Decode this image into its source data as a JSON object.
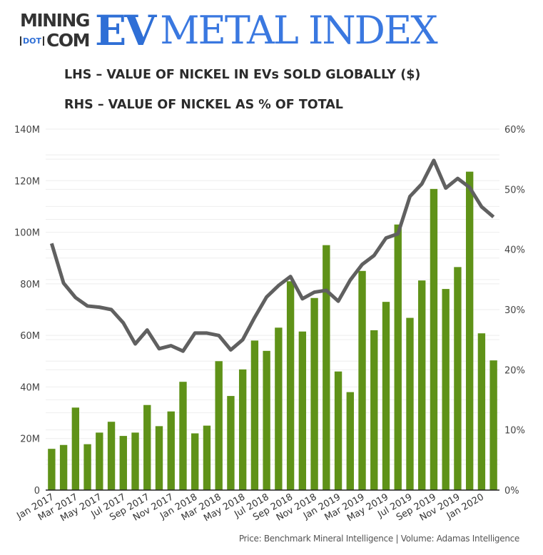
{
  "logo": {
    "mining": "MINING",
    "dot": "DOT",
    "com": "COM",
    "ev": "EV",
    "metal_index": "METAL INDEX"
  },
  "subtitle_lhs": "LHS – VALUE OF NICKEL IN EVs SOLD GLOBALLY ($)",
  "subtitle_rhs": "RHS – VALUE OF NICKEL AS % OF TOTAL",
  "footer": "Price: Benchmark Mineral Intelligence | Volume: Adamas Intelligence",
  "colors": {
    "bars": "#5f9218",
    "line": "#606060",
    "logo_blue": "#2f6fd6",
    "grid": "#eeeeee"
  },
  "chart_data": {
    "type": "bar+line",
    "categories": [
      "Jan 2017",
      "Feb 2017",
      "Mar 2017",
      "Apr 2017",
      "May 2017",
      "Jun 2017",
      "Jul 2017",
      "Aug 2017",
      "Sep 2017",
      "Oct 2017",
      "Nov 2017",
      "Dec 2017",
      "Jan 2018",
      "Feb 2018",
      "Mar 2018",
      "Apr 2018",
      "May 2018",
      "Jun 2018",
      "Jul 2018",
      "Aug 2018",
      "Sep 2018",
      "Oct 2018",
      "Nov 2018",
      "Dec 2018",
      "Jan 2019",
      "Feb 2019",
      "Mar 2019",
      "Apr 2019",
      "May 2019",
      "Jun 2019",
      "Jul 2019",
      "Aug 2019",
      "Sep 2019",
      "Oct 2019",
      "Nov 2019",
      "Dec 2019",
      "Jan 2020",
      "Feb 2020"
    ],
    "x_tick_labels": [
      "Jan 2017",
      "Mar 2017",
      "May 2017",
      "Jul 2017",
      "Sep 2017",
      "Nov 2017",
      "Jan 2018",
      "Mar 2018",
      "May 2018",
      "Jul 2018",
      "Sep 2018",
      "Nov 2018",
      "Jan 2019",
      "Mar 2019",
      "May 2019",
      "Jul 2019",
      "Sep 2019",
      "Nov 2019",
      "Jan 2020"
    ],
    "series": [
      {
        "axis": "left",
        "kind": "bar",
        "unit": "M$",
        "values": [
          16,
          17.5,
          32,
          17.8,
          22.3,
          26.5,
          21,
          22.3,
          33,
          24.8,
          30.5,
          42,
          22,
          25,
          50,
          36.5,
          46.8,
          58,
          54,
          63,
          81,
          61.5,
          74.5,
          95,
          46,
          38,
          85,
          62,
          73,
          103,
          66.8,
          81.3,
          116.8,
          78,
          86.5,
          123.5,
          60.8,
          50.3
        ]
      },
      {
        "axis": "right",
        "kind": "line",
        "unit": "%",
        "values": [
          41.0,
          34.4,
          32.0,
          30.6,
          30.4,
          30.0,
          27.8,
          24.3,
          26.6,
          23.5,
          24.0,
          23.1,
          26.1,
          26.1,
          25.7,
          23.3,
          25.0,
          28.7,
          32.1,
          34.0,
          35.5,
          31.8,
          32.9,
          33.2,
          31.4,
          34.9,
          37.5,
          39.0,
          41.9,
          42.6,
          48.8,
          50.9,
          54.8,
          50.2,
          51.8,
          50.3,
          47.1,
          45.4
        ]
      }
    ],
    "left_axis": {
      "range": [
        0,
        140
      ],
      "ticks": [
        "0",
        "20M",
        "40M",
        "60M",
        "80M",
        "100M",
        "120M",
        "140M"
      ]
    },
    "right_axis": {
      "range": [
        0,
        60
      ],
      "ticks": [
        "0%",
        "10%",
        "20%",
        "30%",
        "40%",
        "50%",
        "60%"
      ]
    },
    "grid": true
  }
}
